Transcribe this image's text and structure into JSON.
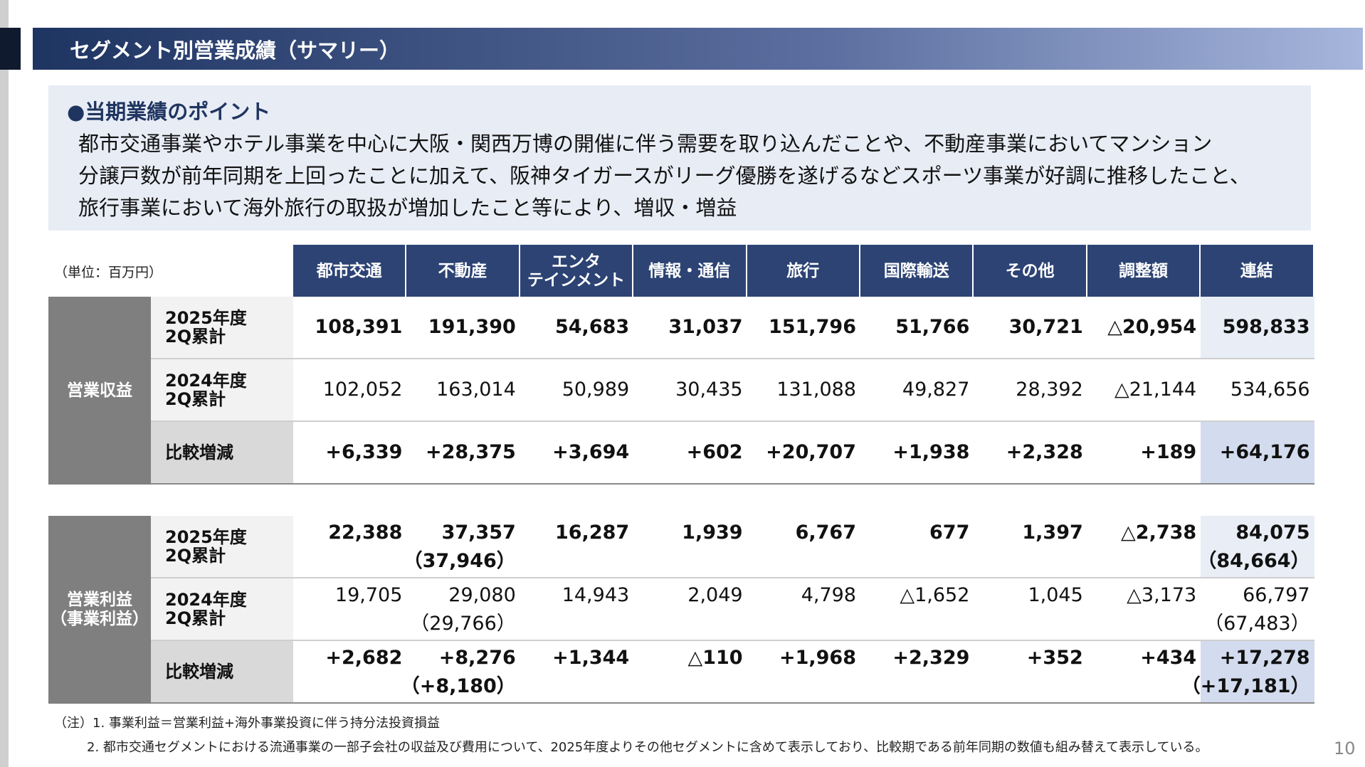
{
  "header": {
    "title": "セグメント別営業成績（サマリー）"
  },
  "points": {
    "heading": "●当期業績のポイント",
    "lines": [
      "都市交通事業やホテル事業を中心に大阪・関西万博の開催に伴う需要を取り込んだことや、不動産事業においてマンション",
      "分譲戸数が前年同期を上回ったことに加えて、阪神タイガースがリーグ優勝を遂げるなどスポーツ事業が好調に推移したこと、",
      "旅行事業において海外旅行の取扱が増加したこと等により、増収・増益"
    ]
  },
  "table": {
    "unit": "（単位：百万円）",
    "columns": [
      "都市交通",
      "不動産",
      "エンタ\nテインメント",
      "情報・通信",
      "旅行",
      "国際輸送",
      "その他",
      "調整額",
      "連結"
    ],
    "sections": [
      {
        "label": "営業収益",
        "rows": [
          {
            "label": "2025年度\n2Q累計",
            "values": [
              "108,391",
              "191,390",
              "54,683",
              "31,037",
              "151,796",
              "51,766",
              "30,721",
              "△20,954",
              "598,833"
            ]
          },
          {
            "label": "2024年度\n2Q累計",
            "values": [
              "102,052",
              "163,014",
              "50,989",
              "30,435",
              "131,088",
              "49,827",
              "28,392",
              "△21,144",
              "534,656"
            ]
          },
          {
            "label": "比較増減",
            "values": [
              "+6,339",
              "+28,375",
              "+3,694",
              "+602",
              "+20,707",
              "+1,938",
              "+2,328",
              "+189",
              "+64,176"
            ]
          }
        ]
      },
      {
        "label": "営業利益\n（事業利益）",
        "rows": [
          {
            "label": "2025年度\n2Q累計",
            "values": [
              "22,388",
              "37,357",
              "16,287",
              "1,939",
              "6,767",
              "677",
              "1,397",
              "△2,738",
              "84,075"
            ],
            "sub": [
              null,
              "（37,946）",
              null,
              null,
              null,
              null,
              null,
              null,
              "（84,664）"
            ]
          },
          {
            "label": "2024年度\n2Q累計",
            "values": [
              "19,705",
              "29,080",
              "14,943",
              "2,049",
              "4,798",
              "△1,652",
              "1,045",
              "△3,173",
              "66,797"
            ],
            "sub": [
              null,
              "（29,766）",
              null,
              null,
              null,
              null,
              null,
              null,
              "（67,483）"
            ]
          },
          {
            "label": "比較増減",
            "values": [
              "+2,682",
              "+8,276",
              "+1,344",
              "△110",
              "+1,968",
              "+2,329",
              "+352",
              "+434",
              "+17,278"
            ],
            "sub": [
              null,
              "（+8,180）",
              null,
              null,
              null,
              null,
              null,
              null,
              "（+17,181）"
            ]
          }
        ]
      }
    ]
  },
  "notes": [
    "（注）1. 事業利益＝営業利益+海外事業投資に伴う持分法投資損益",
    "2. 都市交通セグメントにおける流通事業の一部子会社の収益及び費用について、2025年度よりその他セグメントに含めて表示しており、比較期である前年同期の数値も組み替えて表示している。"
  ],
  "page_number": "10"
}
